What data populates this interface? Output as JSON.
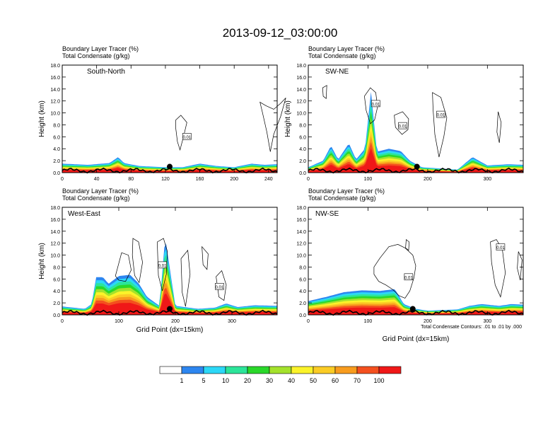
{
  "title": "2013-09-12_03:00:00",
  "colorbar": {
    "colors": [
      "#ffffff",
      "#2d86f0",
      "#2cd8f7",
      "#2ce59a",
      "#2ad82a",
      "#a4e22c",
      "#fbf32a",
      "#fbcc25",
      "#f89c1e",
      "#f4501f",
      "#f01818"
    ],
    "labels": [
      "1",
      "5",
      "10",
      "20",
      "30",
      "40",
      "50",
      "60",
      "70",
      "100"
    ]
  },
  "contour_note": "Total Condensate Contours: .01 to .01 by .000",
  "chart_data": [
    {
      "type": "heatmap",
      "subtitle_lines": [
        "Boundary Layer Tracer   (%)",
        "Total Condensate   (g/kg)"
      ],
      "panel_label": "South-North",
      "ylabel": "Height (km)",
      "xlabel": "",
      "xlim": [
        0,
        250
      ],
      "ylim": [
        0,
        18
      ],
      "xticks": [
        0,
        40,
        80,
        120,
        160,
        200,
        240
      ],
      "yticks": [
        "0.0",
        "2.0",
        "4.0",
        "6.0",
        "8.0",
        "10.0",
        "12.0",
        "14.0",
        "16.0",
        "18.0"
      ],
      "contour_labels": [
        {
          "text": "0.01",
          "x": 145,
          "y": 6.0
        }
      ],
      "marker": {
        "x": 125,
        "y": 1.0
      },
      "bl_top_km": [
        [
          0,
          1.5
        ],
        [
          30,
          1.3
        ],
        [
          55,
          1.6
        ],
        [
          65,
          2.6
        ],
        [
          72,
          1.6
        ],
        [
          90,
          1.1
        ],
        [
          120,
          0.9
        ],
        [
          140,
          0.9
        ],
        [
          160,
          1.5
        ],
        [
          180,
          1.1
        ],
        [
          200,
          0.9
        ],
        [
          220,
          1.5
        ],
        [
          235,
          1.3
        ],
        [
          250,
          1.4
        ]
      ]
    },
    {
      "type": "heatmap",
      "subtitle_lines": [
        "Boundary Layer Tracer   (%)",
        "Total Condensate   (g/kg)"
      ],
      "panel_label": "SW-NE",
      "ylabel": "Height (km)",
      "xlabel": "",
      "xlim": [
        0,
        360
      ],
      "ylim": [
        0,
        18
      ],
      "xticks": [
        0,
        100,
        200,
        300
      ],
      "yticks": [
        "0.0",
        "2.0",
        "4.0",
        "6.0",
        "8.0",
        "10.0",
        "12.0",
        "14.0",
        "16.0",
        "18.0"
      ],
      "contour_labels": [
        {
          "text": "0.01",
          "x": 113,
          "y": 11.5
        },
        {
          "text": "0.01",
          "x": 158,
          "y": 7.8
        },
        {
          "text": "0.01",
          "x": 222,
          "y": 9.7
        }
      ],
      "marker": {
        "x": 182,
        "y": 1.0
      },
      "bl_top_km": [
        [
          0,
          0.9
        ],
        [
          25,
          2.0
        ],
        [
          38,
          4.5
        ],
        [
          50,
          2.2
        ],
        [
          68,
          4.9
        ],
        [
          80,
          2.2
        ],
        [
          95,
          4.0
        ],
        [
          105,
          13.5
        ],
        [
          115,
          3.5
        ],
        [
          135,
          4.0
        ],
        [
          155,
          3.6
        ],
        [
          170,
          2.0
        ],
        [
          190,
          0.9
        ],
        [
          250,
          0.5
        ],
        [
          275,
          2.6
        ],
        [
          300,
          1.2
        ],
        [
          335,
          1.4
        ],
        [
          360,
          1.3
        ]
      ]
    },
    {
      "type": "heatmap",
      "subtitle_lines": [
        "Boundary Layer Tracer   (%)",
        "Total Condensate   (g/kg)"
      ],
      "panel_label": "West-East",
      "ylabel": "Height (km)",
      "xlabel": "Grid Point (dx=15km)",
      "xlim": [
        0,
        380
      ],
      "ylim": [
        0,
        18
      ],
      "xticks": [
        0,
        100,
        200,
        300
      ],
      "yticks": [
        "0.0",
        "2.0",
        "4.0",
        "6.0",
        "8.0",
        "10.0",
        "12.0",
        "14.0",
        "16.0",
        "18.0"
      ],
      "contour_labels": [
        {
          "text": "0.01",
          "x": 177,
          "y": 8.3
        },
        {
          "text": "0.01",
          "x": 278,
          "y": 4.7
        }
      ],
      "marker": {
        "x": 190,
        "y": 1.0
      },
      "bl_top_km": [
        [
          0,
          1.4
        ],
        [
          40,
          1.0
        ],
        [
          52,
          1.8
        ],
        [
          60,
          6.3
        ],
        [
          72,
          6.3
        ],
        [
          82,
          5.2
        ],
        [
          100,
          6.5
        ],
        [
          120,
          6.7
        ],
        [
          135,
          5.3
        ],
        [
          150,
          3.0
        ],
        [
          172,
          1.5
        ],
        [
          182,
          13.0
        ],
        [
          200,
          1.5
        ],
        [
          240,
          1.0
        ],
        [
          270,
          1.2
        ],
        [
          290,
          1.9
        ],
        [
          310,
          1.3
        ],
        [
          340,
          1.6
        ],
        [
          380,
          1.5
        ]
      ]
    },
    {
      "type": "heatmap",
      "subtitle_lines": [
        "Boundary Layer Tracer   (%)",
        "Total Condensate   (g/kg)"
      ],
      "panel_label": "NW-SE",
      "ylabel": "",
      "xlabel": "Grid Point (dx=15km)",
      "xlim": [
        0,
        360
      ],
      "ylim": [
        0,
        18
      ],
      "xticks": [
        0,
        100,
        200,
        300
      ],
      "yticks": [
        "0.0",
        "2.0",
        "4.0",
        "6.0",
        "8.0",
        "10.0",
        "12.0",
        "14.0",
        "16.0",
        "18.0"
      ],
      "contour_labels": [
        {
          "text": "0.01",
          "x": 168,
          "y": 6.3
        },
        {
          "text": "0.01",
          "x": 322,
          "y": 11.3
        }
      ],
      "marker": {
        "x": 175,
        "y": 1.0
      },
      "bl_top_km": [
        [
          0,
          2.3
        ],
        [
          30,
          3.0
        ],
        [
          60,
          3.8
        ],
        [
          90,
          4.1
        ],
        [
          120,
          4.0
        ],
        [
          145,
          4.3
        ],
        [
          160,
          1.8
        ],
        [
          180,
          1.0
        ],
        [
          200,
          0.7
        ],
        [
          250,
          0.9
        ],
        [
          270,
          1.5
        ],
        [
          290,
          1.8
        ],
        [
          320,
          1.5
        ],
        [
          340,
          1.8
        ],
        [
          360,
          1.7
        ]
      ]
    }
  ]
}
